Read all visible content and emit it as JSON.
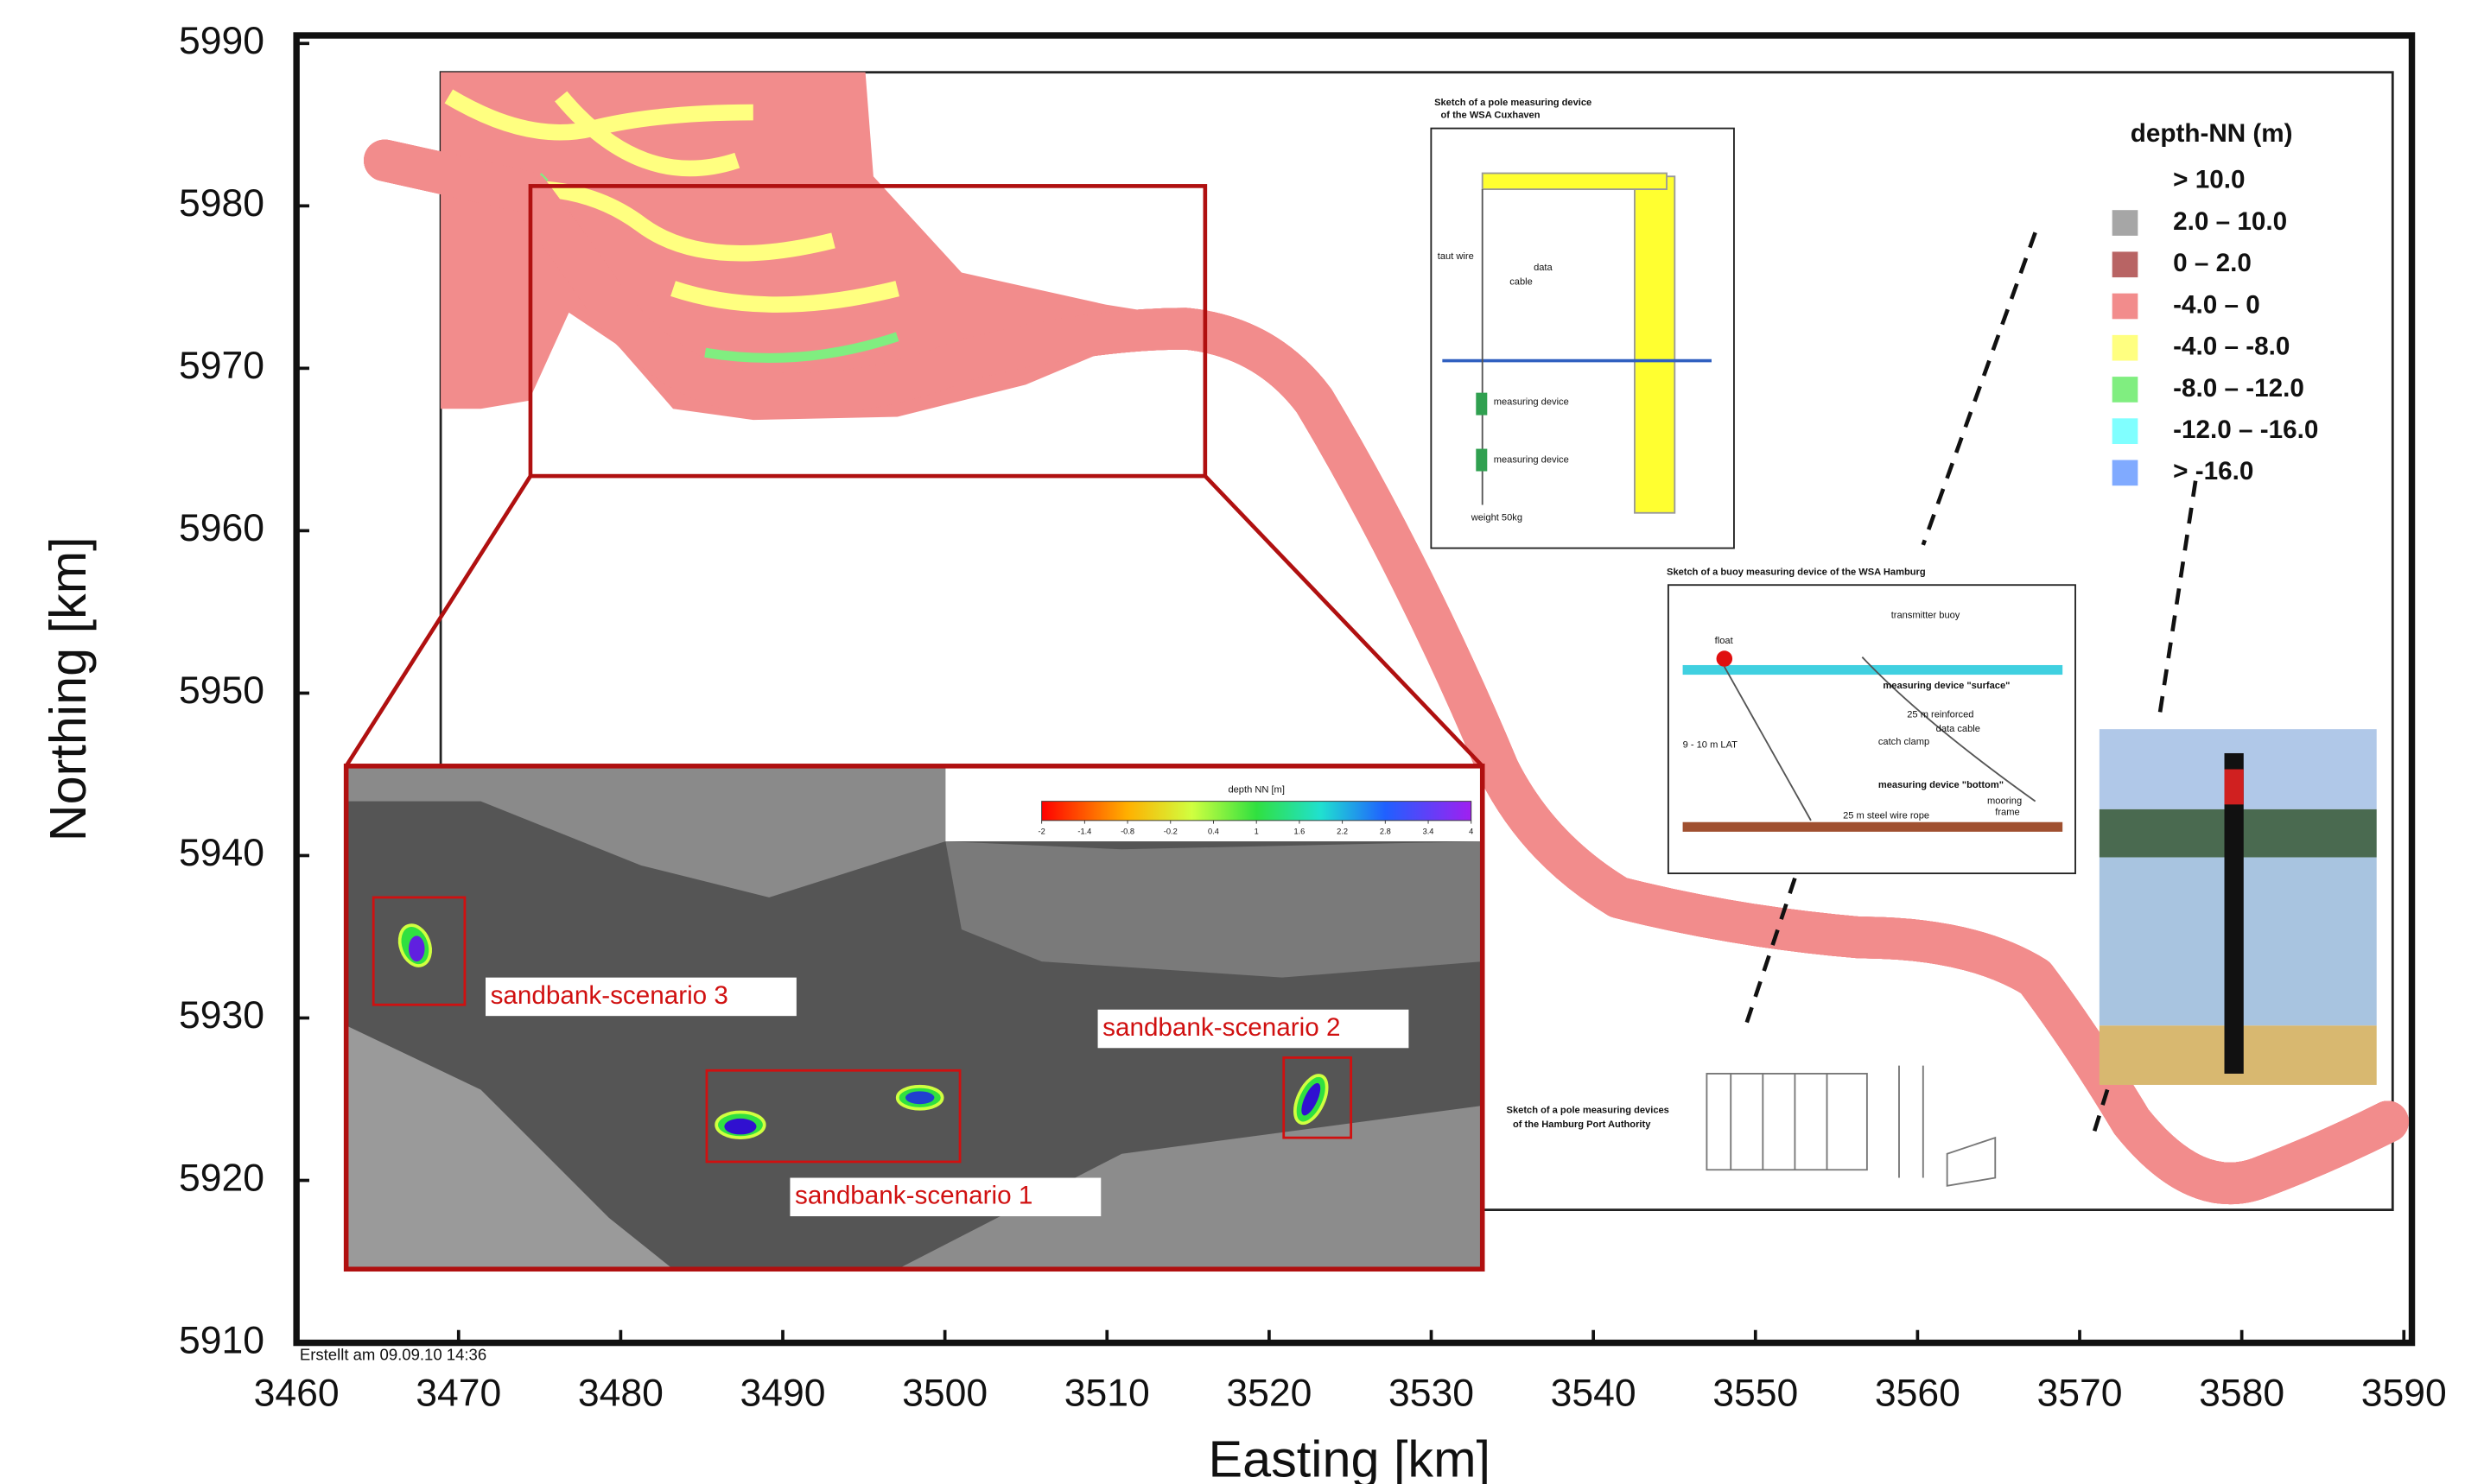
{
  "map": {
    "xlabel": "Easting [km]",
    "ylabel": "Northing [km]",
    "xlim": [
      3460,
      3590
    ],
    "ylim": [
      5910,
      5990
    ],
    "xticks": [
      3460,
      3470,
      3480,
      3490,
      3500,
      3510,
      3520,
      3530,
      3540,
      3550,
      3560,
      3570,
      3580,
      3590
    ],
    "yticks": [
      5910,
      5920,
      5930,
      5940,
      5950,
      5960,
      5970,
      5980,
      5990
    ],
    "timestamp": "Erstellt am 09.09.10 14:36",
    "legend": {
      "title": "depth-NN (m)",
      "items": [
        {
          "label": "> 10.0",
          "color": "#ffffff"
        },
        {
          "label": "2.0 – 10.0",
          "color": "#a6a6a6"
        },
        {
          "label": "0 – 2.0",
          "color": "#b86464"
        },
        {
          "label": "-4.0 – 0",
          "color": "#f28c8c"
        },
        {
          "label": "-4.0 – -8.0",
          "color": "#ffff80"
        },
        {
          "label": "-8.0 – -12.0",
          "color": "#80ee80"
        },
        {
          "label": "-12.0 – -16.0",
          "color": "#80ffff"
        },
        {
          "label": ">  -16.0",
          "color": "#80aaff"
        }
      ]
    },
    "inset": {
      "colorbar": {
        "title": "depth NN [m]",
        "range": [
          -2,
          4
        ],
        "ticks": [
          -2,
          -1.4,
          -0.8,
          -0.2,
          0.4,
          1,
          1.6,
          2.2,
          2.8,
          3.4,
          4
        ]
      },
      "scenario_3": "sandbank-scenario 3",
      "scenario_2": "sandbank-scenario 2",
      "scenario_1": "sandbank-scenario 1"
    },
    "sketches": {
      "cuxhaven": {
        "title_1": "Sketch of a pole measuring device",
        "title_2": "of the WSA Cuxhaven",
        "taut_wire": "taut wire",
        "data_cable_1": "data",
        "data_cable_2": "cable",
        "device_1": "measuring device",
        "device_2": "measuring device",
        "weight": "weight  50kg"
      },
      "hamburg_buoy": {
        "title": "Sketch of a buoy measuring device of the WSA Hamburg",
        "float": "float",
        "transmitter": "transmitter buoy",
        "surface": "measuring device \"surface\"",
        "reinforced": "25 m reinforced",
        "data_cable": "data cable",
        "clamp": "catch clamp",
        "lat": "9 - 10 m LAT",
        "bottom": "measuring device \"bottom\"",
        "mooring_1": "mooring",
        "mooring_2": "frame",
        "rope": "25 m steel wire rope"
      },
      "hpa": {
        "title_1": "Sketch of a pole measuring devices",
        "title_2": "of the Hamburg Port Authority"
      }
    }
  }
}
